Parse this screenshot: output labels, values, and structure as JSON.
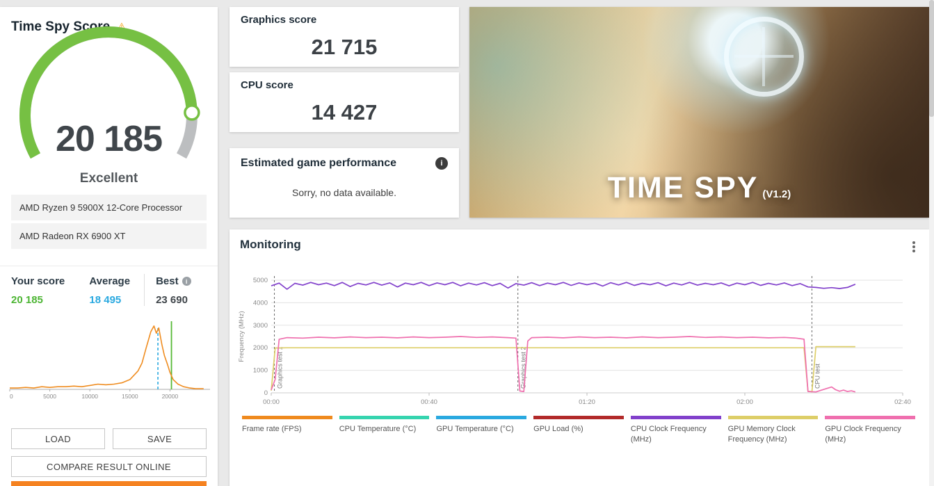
{
  "icons": {
    "warning": "⚠",
    "info": "i"
  },
  "score_panel": {
    "title": "Time Spy Score",
    "score": "20 185",
    "rating": "Excellent",
    "cpu_name": "AMD Ryzen 9 5900X 12-Core Processor",
    "gpu_name": "AMD Radeon RX 6900 XT",
    "comparison": {
      "your_label": "Your score",
      "your_value": "20 185",
      "average_label": "Average",
      "average_value": "18 495",
      "best_label": "Best",
      "best_value": "23 690"
    },
    "buttons": {
      "load": "LOAD",
      "save": "SAVE",
      "compare": "COMPARE RESULT ONLINE"
    },
    "gauge": {
      "start_deg": 151,
      "end_deg": 389,
      "fraction": 0.87
    },
    "colors": {
      "gauge_green": "#76c043",
      "gauge_gray": "#bcbec0",
      "accent_orange": "#f58220"
    }
  },
  "score_cards": {
    "graphics_label": "Graphics score",
    "graphics_value": "21 715",
    "cpu_label": "CPU score",
    "cpu_value": "14 427",
    "estimated_label": "Estimated game performance",
    "estimated_message": "Sorry, no data available."
  },
  "hero": {
    "title": "TIME SPY",
    "version": "(V1.2)"
  },
  "monitoring": {
    "title": "Monitoring"
  },
  "chart_data": [
    {
      "type": "line",
      "name": "score-distribution-histogram",
      "xlim": [
        0,
        25000
      ],
      "x_ticks": [
        0,
        5000,
        10000,
        15000,
        20000
      ],
      "x": [
        0,
        1000,
        2000,
        3000,
        4000,
        5000,
        6000,
        7000,
        8000,
        9000,
        10000,
        11000,
        12000,
        13000,
        14000,
        15000,
        16000,
        16500,
        17000,
        17300,
        17600,
        18000,
        18300,
        18600,
        19000,
        19300,
        19700,
        20000,
        20400,
        21000,
        21700,
        22500,
        23200,
        24200
      ],
      "values": [
        2,
        2,
        3,
        2,
        4,
        3,
        4,
        4,
        5,
        4,
        6,
        8,
        7,
        8,
        10,
        15,
        28,
        40,
        62,
        75,
        88,
        97,
        86,
        94,
        68,
        52,
        38,
        26,
        15,
        8,
        4,
        2,
        1,
        1
      ],
      "markers": {
        "average": 18495,
        "your_score": 20185
      },
      "colors": {
        "curve": "#ef8c1f",
        "average": "#2aa9e0",
        "your_score": "#55b935"
      }
    },
    {
      "type": "line",
      "name": "monitoring-frequency-chart",
      "ylabel": "Frequency (MHz)",
      "ylim": [
        0,
        5000
      ],
      "y_ticks": [
        0,
        1000,
        2000,
        3000,
        4000,
        5000
      ],
      "x_ticks": [
        "00:00",
        "00:40",
        "01:20",
        "02:00",
        "02:40"
      ],
      "x_tick_seconds": [
        0,
        40,
        80,
        120,
        160
      ],
      "xlim_seconds": [
        0,
        160
      ],
      "grid": true,
      "legend_position": "bottom",
      "events": [
        {
          "label": "Graphics test 1",
          "time": 0.8
        },
        {
          "label": "Graphics test 2",
          "time": 62.5
        },
        {
          "label": "CPU test",
          "time": 137
        }
      ],
      "series": [
        {
          "name": "GPU Memory Clock Frequency (MHz)",
          "color": "#ddce68",
          "points": [
            [
              0,
              100
            ],
            [
              1,
              1990
            ],
            [
              4,
              2000
            ],
            [
              135,
              2000
            ],
            [
              136,
              70
            ],
            [
              137,
              50
            ],
            [
              138,
              2050
            ],
            [
              148,
              2050
            ]
          ]
        },
        {
          "name": "GPU Clock Frequency (MHz)",
          "color": "#ef6fae",
          "points": [
            [
              0,
              130
            ],
            [
              1,
              600
            ],
            [
              2,
              2380
            ],
            [
              4,
              2450
            ],
            [
              8,
              2430
            ],
            [
              12,
              2470
            ],
            [
              16,
              2440
            ],
            [
              20,
              2480
            ],
            [
              24,
              2450
            ],
            [
              28,
              2470
            ],
            [
              32,
              2440
            ],
            [
              36,
              2480
            ],
            [
              40,
              2450
            ],
            [
              44,
              2470
            ],
            [
              48,
              2500
            ],
            [
              52,
              2460
            ],
            [
              56,
              2480
            ],
            [
              60,
              2450
            ],
            [
              62,
              2430
            ],
            [
              63,
              80
            ],
            [
              64,
              60
            ],
            [
              65,
              2300
            ],
            [
              66,
              2450
            ],
            [
              70,
              2470
            ],
            [
              74,
              2440
            ],
            [
              78,
              2480
            ],
            [
              82,
              2450
            ],
            [
              86,
              2470
            ],
            [
              90,
              2440
            ],
            [
              94,
              2480
            ],
            [
              98,
              2450
            ],
            [
              102,
              2470
            ],
            [
              106,
              2500
            ],
            [
              110,
              2460
            ],
            [
              114,
              2480
            ],
            [
              118,
              2450
            ],
            [
              122,
              2470
            ],
            [
              126,
              2440
            ],
            [
              130,
              2460
            ],
            [
              133,
              2430
            ],
            [
              135,
              2380
            ],
            [
              136,
              60
            ],
            [
              138,
              40
            ],
            [
              140,
              150
            ],
            [
              142,
              260
            ],
            [
              143,
              140
            ],
            [
              144,
              70
            ],
            [
              145,
              120
            ],
            [
              146,
              60
            ],
            [
              147,
              90
            ],
            [
              148,
              40
            ]
          ]
        },
        {
          "name": "CPU Clock Frequency (MHz)",
          "color": "#8140cb",
          "t_start": 0,
          "t_step": 2,
          "values": [
            4750,
            4870,
            4600,
            4860,
            4780,
            4900,
            4800,
            4870,
            4760,
            4900,
            4720,
            4860,
            4790,
            4900,
            4780,
            4880,
            4700,
            4870,
            4800,
            4900,
            4760,
            4880,
            4800,
            4900,
            4750,
            4870,
            4790,
            4890,
            4760,
            4860,
            4650,
            4850,
            4780,
            4890,
            4760,
            4870,
            4800,
            4900,
            4770,
            4880,
            4800,
            4870,
            4740,
            4890,
            4790,
            4900,
            4770,
            4860,
            4800,
            4890,
            4750,
            4870,
            4790,
            4900,
            4780,
            4860,
            4800,
            4880,
            4750,
            4870,
            4800,
            4900,
            4770,
            4860,
            4790,
            4880,
            4760,
            4850,
            4700,
            4680,
            4640,
            4670,
            4630,
            4680,
            4820
          ]
        }
      ],
      "legend": [
        {
          "label": "Frame rate (FPS)",
          "color": "#ef8a1e"
        },
        {
          "label": "CPU Temperature (°C)",
          "color": "#35d4af"
        },
        {
          "label": "GPU Temperature (°C)",
          "color": "#2aa9e0"
        },
        {
          "label": "GPU Load (%)",
          "color": "#b22a2a"
        },
        {
          "label": "CPU Clock Frequency (MHz)",
          "color": "#8140cb"
        },
        {
          "label": "GPU Memory Clock Frequency (MHz)",
          "color": "#ddce68"
        },
        {
          "label": "GPU Clock Frequency (MHz)",
          "color": "#ef6fae"
        }
      ]
    }
  ]
}
